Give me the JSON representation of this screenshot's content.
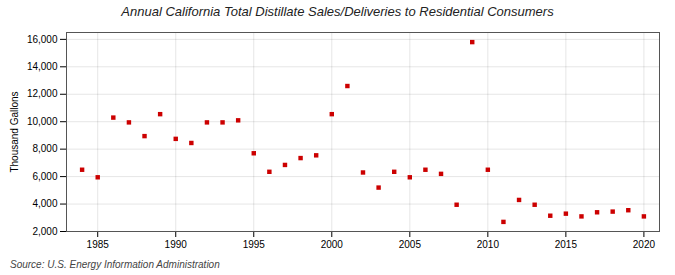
{
  "chart_data": {
    "type": "scatter",
    "title": "Annual California Total Distillate Sales/Deliveries to Residential Consumers",
    "ylabel": "Thousand Gallons",
    "source": "Source: U.S. Energy Information Administration",
    "x": [
      1984,
      1985,
      1986,
      1987,
      1988,
      1989,
      1990,
      1991,
      1992,
      1993,
      1994,
      1995,
      1996,
      1997,
      1998,
      1999,
      2000,
      2001,
      2002,
      2003,
      2004,
      2005,
      2006,
      2007,
      2008,
      2009,
      2010,
      2011,
      2012,
      2013,
      2014,
      2015,
      2016,
      2017,
      2018,
      2019,
      2020
    ],
    "values": [
      6500,
      5950,
      10300,
      9950,
      8950,
      10550,
      8750,
      8450,
      9950,
      9950,
      10100,
      7700,
      6350,
      6850,
      7350,
      7550,
      10550,
      12600,
      6300,
      5200,
      6350,
      5950,
      6500,
      6200,
      3950,
      15800,
      6500,
      2700,
      4300,
      3950,
      3150,
      3300,
      3100,
      3400,
      3450,
      3550,
      3100
    ],
    "color": "#cc0000",
    "marker": "square",
    "xlim": [
      1983,
      2021
    ],
    "ylim": [
      2000,
      16500
    ],
    "xticks": [
      1985,
      1990,
      1995,
      2000,
      2005,
      2010,
      2015,
      2020
    ],
    "yticks": [
      {
        "value": 2000,
        "label": "2,000"
      },
      {
        "value": 4000,
        "label": "4,000"
      },
      {
        "value": 6000,
        "label": "6,000"
      },
      {
        "value": 8000,
        "label": "8,000"
      },
      {
        "value": 10000,
        "label": "10,000"
      },
      {
        "value": 12000,
        "label": "12,000"
      },
      {
        "value": 14000,
        "label": "14,000"
      },
      {
        "value": 16000,
        "label": "16,000"
      }
    ],
    "grid": true
  }
}
